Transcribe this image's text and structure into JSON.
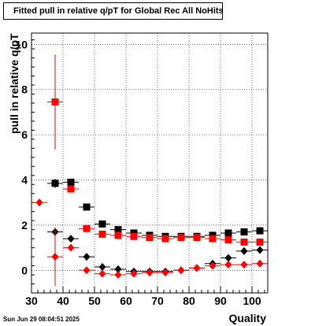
{
  "title": "Fitted pull in relative q/pT for Global Rec All NoHits",
  "timestamp": "Sun Jun 29 08:04:51 2025",
  "colors": {
    "black": "#000000",
    "red": "#ff0000"
  },
  "chart_data": {
    "type": "scatter",
    "title": "Fitted pull in relative q/pT for Global Rec All NoHits",
    "xlabel": "Quality",
    "ylabel": "pull in relative q/pT",
    "xlim": [
      30,
      105
    ],
    "ylim": [
      -1,
      10.5
    ],
    "xticks": [
      30,
      40,
      50,
      60,
      70,
      80,
      90,
      100
    ],
    "yticks": [
      0,
      2,
      4,
      6,
      8,
      10
    ],
    "grid": true,
    "x_halfwidth": 2.5,
    "series": [
      {
        "marker": "square",
        "color": "black",
        "points": [
          [
            37.5,
            3.85,
            0.2
          ],
          [
            42.5,
            3.9,
            0.12
          ],
          [
            47.5,
            2.8,
            0.08
          ],
          [
            52.5,
            2.05,
            0.06
          ],
          [
            57.5,
            1.8,
            0.05
          ],
          [
            62.5,
            1.65,
            0.05
          ],
          [
            67.5,
            1.55,
            0.05
          ],
          [
            72.5,
            1.5,
            0.05
          ],
          [
            77.5,
            1.5,
            0.05
          ],
          [
            82.5,
            1.5,
            0.05
          ],
          [
            87.5,
            1.55,
            0.05
          ],
          [
            92.5,
            1.65,
            0.05
          ],
          [
            97.5,
            1.7,
            0.05
          ],
          [
            102.5,
            1.75,
            0.05
          ]
        ]
      },
      {
        "marker": "square",
        "color": "red",
        "points": [
          [
            37.5,
            7.45,
            2.1
          ],
          [
            42.5,
            3.6,
            0.12
          ],
          [
            47.5,
            1.85,
            0.06
          ],
          [
            52.5,
            1.6,
            0.05
          ],
          [
            57.5,
            1.55,
            0.05
          ],
          [
            62.5,
            1.5,
            0.05
          ],
          [
            67.5,
            1.45,
            0.05
          ],
          [
            72.5,
            1.4,
            0.05
          ],
          [
            77.5,
            1.45,
            0.05
          ],
          [
            82.5,
            1.45,
            0.05
          ],
          [
            87.5,
            1.4,
            0.05
          ],
          [
            92.5,
            1.35,
            0.05
          ],
          [
            97.5,
            1.25,
            0.05
          ],
          [
            102.5,
            1.25,
            0.05
          ]
        ]
      },
      {
        "marker": "diamond",
        "color": "black",
        "points": [
          [
            37.5,
            1.7,
            0.1
          ],
          [
            42.5,
            1.4,
            0.08
          ],
          [
            47.5,
            0.6,
            0.05
          ],
          [
            52.5,
            0.15,
            0.04
          ],
          [
            57.5,
            0.05,
            0.04
          ],
          [
            62.5,
            -0.05,
            0.04
          ],
          [
            67.5,
            -0.05,
            0.04
          ],
          [
            72.5,
            -0.05,
            0.04
          ],
          [
            77.5,
            0.0,
            0.04
          ],
          [
            82.5,
            0.1,
            0.04
          ],
          [
            87.5,
            0.3,
            0.04
          ],
          [
            92.5,
            0.55,
            0.04
          ],
          [
            97.5,
            0.85,
            0.04
          ],
          [
            102.5,
            0.9,
            0.04
          ]
        ]
      },
      {
        "marker": "diamond",
        "color": "red",
        "points": [
          [
            32.5,
            3.0,
            0.15
          ],
          [
            37.5,
            0.6,
            1.3
          ],
          [
            42.5,
            1.0,
            0.1
          ],
          [
            47.5,
            0.0,
            0.05
          ],
          [
            52.5,
            -0.15,
            0.04
          ],
          [
            57.5,
            -0.2,
            0.04
          ],
          [
            62.5,
            -0.15,
            0.04
          ],
          [
            67.5,
            -0.1,
            0.04
          ],
          [
            72.5,
            -0.1,
            0.04
          ],
          [
            77.5,
            0.0,
            0.04
          ],
          [
            82.5,
            0.1,
            0.04
          ],
          [
            87.5,
            0.2,
            0.04
          ],
          [
            92.5,
            0.25,
            0.04
          ],
          [
            97.5,
            0.25,
            0.04
          ],
          [
            102.5,
            0.3,
            0.04
          ]
        ]
      }
    ]
  }
}
